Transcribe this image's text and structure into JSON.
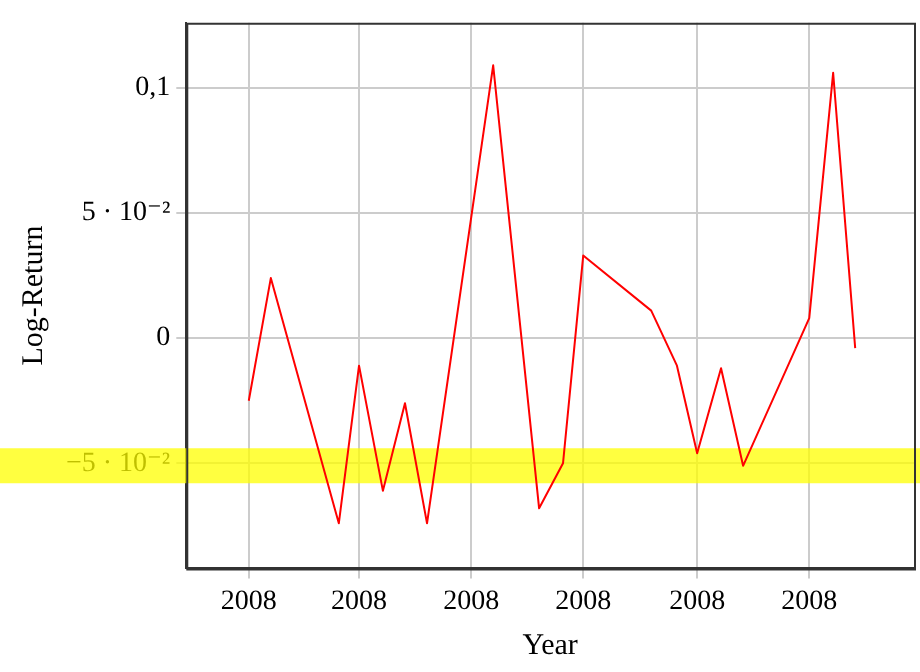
{
  "chart_data": {
    "type": "line",
    "xlabel": "Year",
    "ylabel": "Log-Return",
    "x": [
      "2008-01-01",
      "2008-01-13",
      "2008-02-19",
      "2008-03-01",
      "2008-03-14",
      "2008-03-26",
      "2008-04-07",
      "2008-05-13",
      "2008-06-07",
      "2008-06-20",
      "2008-07-01",
      "2008-08-07",
      "2008-08-21",
      "2008-09-01",
      "2008-09-14",
      "2008-09-26",
      "2008-11-01",
      "2008-11-14",
      "2008-11-26"
    ],
    "series": [
      {
        "color": "#ff0000",
        "values": [
          -0.025,
          0.024,
          -0.074,
          -0.011,
          -0.061,
          -0.026,
          -0.074,
          0.109,
          -0.068,
          -0.05,
          0.033,
          0.011,
          -0.011,
          -0.046,
          -0.012,
          -0.051,
          0.008,
          0.106,
          -0.004
        ]
      }
    ],
    "xlim": [
      "2007-11-28",
      "2008-12-28"
    ],
    "ylim": [
      -0.092,
      0.126
    ],
    "xticks": [
      {
        "value": "2008-01-01",
        "label": "2008"
      },
      {
        "value": "2008-03-01",
        "label": "2008"
      },
      {
        "value": "2008-05-01",
        "label": "2008"
      },
      {
        "value": "2008-07-01",
        "label": "2008"
      },
      {
        "value": "2008-09-01",
        "label": "2008"
      },
      {
        "value": "2008-11-01",
        "label": "2008"
      }
    ],
    "yticks": [
      {
        "value": -0.05,
        "label": "−5 · 10⁻²"
      },
      0,
      {
        "value": 0.05,
        "label": "5 · 10⁻²"
      },
      {
        "value": 0.1,
        "label": "0,1"
      }
    ],
    "bands": [
      {
        "axis": "y",
        "from": -0.058,
        "to": -0.044,
        "color": "#ffff00"
      }
    ],
    "grid": true,
    "legend": false,
    "marker": "none",
    "line_style": "solid"
  }
}
